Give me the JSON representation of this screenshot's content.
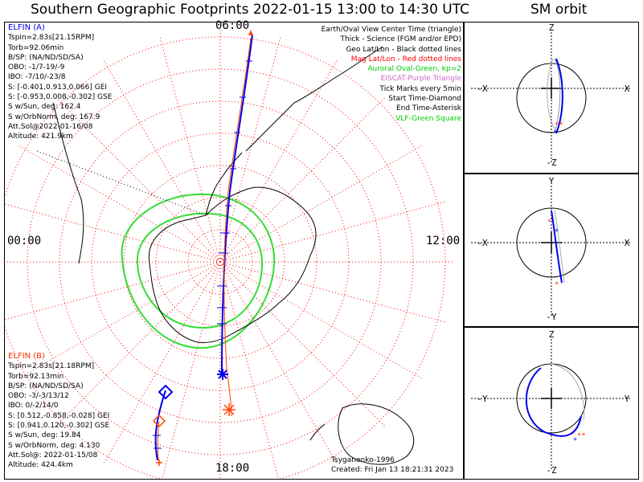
{
  "title": "Southern Geographic Footprints 2022-01-15 13:00 to 14:30 UTC",
  "sm_title": "SM orbit",
  "clock_labels": {
    "top": "06:00",
    "left": "00:00",
    "right": "12:00",
    "bottom": "18:00"
  },
  "elfin_a": {
    "name": "ELFIN (A)",
    "lines": [
      "Tspin=2.83s[21.15RPM]",
      "Torb=92.06min",
      "B/SP: (NA/ND/SD/SA)",
      "OBO: -1/7-19/-9",
      "IBO: -7/10/-23/8",
      "S: [-0.401,0.913,0.066] GEI",
      "S: [-0.953,0.008,-0.302] GSE",
      "S w/Sun, deg: 162.4",
      "S w/OrbNorm, deg: 167.9",
      "Att.Sol@2022-01-16/08",
      "Altitude: 421.9km"
    ]
  },
  "elfin_b": {
    "name": "ELFIN (B)",
    "lines": [
      "Tspin=2.83s[21.18RPM]",
      "Torb=92.13min",
      "B/SP: (NA/ND/SD/SA)",
      "OBO: -3/-3/13/12",
      "IBO: 0/-2/14/0",
      "S: [0.512,-0.858,-0.028] GEI",
      "S: [0.941,0.120,-0.302] GSE",
      "S w/Sun, deg: 19.84",
      "S w/OrbNorm, deg: 4.130",
      "Att.Sol@: 2022-01-15/08",
      "Altitude: 424.4km"
    ]
  },
  "legend": [
    {
      "text": "Earth/Oval View Center Time (triangle)",
      "color": "#000000"
    },
    {
      "text": "Thick - Science (FGM and/or EPD)",
      "color": "#000000"
    },
    {
      "text": "Geo Lat/Lon - Black dotted lines",
      "color": "#000000"
    },
    {
      "text": "Mag Lat/Lon - Red dotted lines",
      "color": "#ff0000"
    },
    {
      "text": "Auroral Oval-Green, kp=2",
      "color": "#00cc00"
    },
    {
      "text": "EISCAT-Purple Triangle",
      "color": "#cc66cc"
    },
    {
      "text": "Tick Marks every 5min",
      "color": "#000000"
    },
    {
      "text": "Start Time-Diamond",
      "color": "#000000"
    },
    {
      "text": "End Time-Asterisk",
      "color": "#000000"
    },
    {
      "text": "VLF-Green Square",
      "color": "#00cc00"
    }
  ],
  "credits": [
    "Tsyganenko-1996",
    "Created: Fri Jan 13 18:21:31 2023"
  ],
  "sm_panels": [
    {
      "top": "Z",
      "bottom": "-Z",
      "left": "-X",
      "right": "X"
    },
    {
      "top": "Y",
      "bottom": "-Y",
      "left": "-X",
      "right": "X"
    },
    {
      "top": "Z",
      "bottom": "-Z",
      "left": "-Y",
      "right": "Y"
    }
  ],
  "colors": {
    "elfin_a": "#0000ee",
    "elfin_b": "#ff3300",
    "oval": "#33dd33",
    "mag_grid": "#ff0000"
  },
  "chart_data": {
    "type": "map",
    "projection": "south polar",
    "time_range": [
      "2022-01-15 13:00",
      "2022-01-15 14:30"
    ],
    "series": [
      {
        "name": "ELFIN (A)"
      },
      {
        "name": "ELFIN (B)"
      }
    ]
  }
}
